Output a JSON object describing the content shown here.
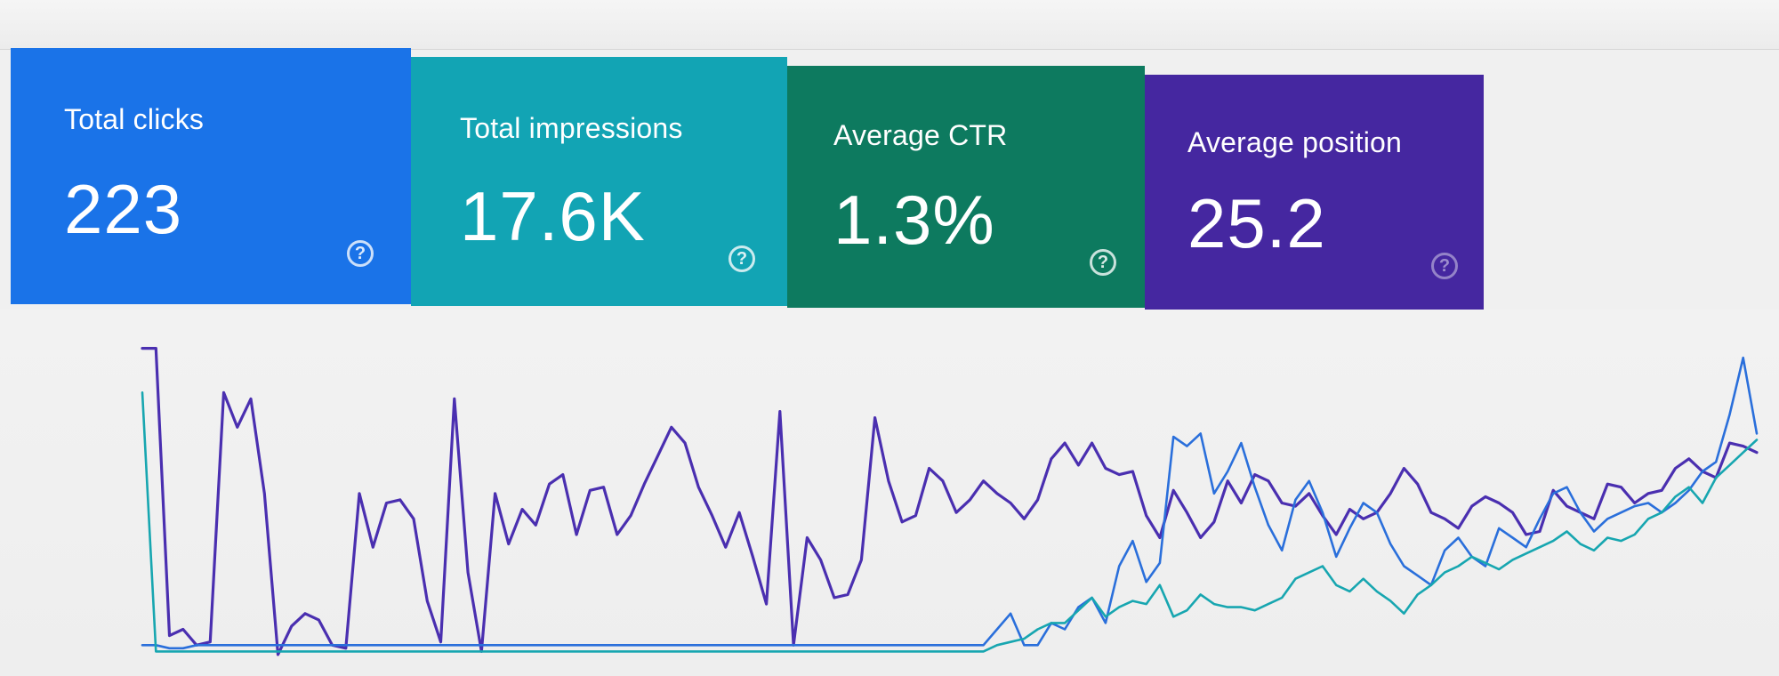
{
  "cards": [
    {
      "label": "Total clicks",
      "value": "223",
      "color": "#1a73e8",
      "icon": "help-icon"
    },
    {
      "label": "Total impressions",
      "value": "17.6K",
      "color": "#12a4b4",
      "icon": "help-icon"
    },
    {
      "label": "Average CTR",
      "value": "1.3%",
      "color": "#0d7a5f",
      "icon": "help-icon"
    },
    {
      "label": "Average position",
      "value": "25.2",
      "color": "#4527a0",
      "icon": "help-icon"
    }
  ],
  "help_glyph": "?",
  "chart_data": {
    "type": "line",
    "grid": false,
    "legend": "none",
    "x": [
      1,
      2,
      3,
      4,
      5,
      6,
      7,
      8,
      9,
      10,
      11,
      12,
      13,
      14,
      15,
      16,
      17,
      18,
      19,
      20,
      21,
      22,
      23,
      24,
      25,
      26,
      27,
      28,
      29,
      30,
      31,
      32,
      33,
      34,
      35,
      36,
      37,
      38,
      39,
      40,
      41,
      42,
      43,
      44,
      45,
      46,
      47,
      48,
      49,
      50,
      51,
      52,
      53,
      54,
      55,
      56,
      57,
      58,
      59,
      60,
      61,
      62,
      63,
      64,
      65,
      66,
      67,
      68,
      69,
      70,
      71,
      72,
      73,
      74,
      75,
      76,
      77,
      78,
      79,
      80,
      81,
      82,
      83,
      84,
      85,
      86,
      87,
      88,
      89,
      90,
      91,
      92,
      93,
      94,
      95,
      96,
      97,
      98,
      99,
      100,
      101,
      102,
      103,
      104,
      105,
      106,
      107,
      108,
      109,
      110,
      111,
      112,
      113,
      114,
      115,
      116,
      117,
      118,
      119,
      120
    ],
    "ylim": [
      0,
      1
    ],
    "series": [
      {
        "color": "#4a2fb0",
        "values": [
          0.99,
          0.99,
          0.08,
          0.1,
          0.05,
          0.06,
          0.85,
          0.74,
          0.83,
          0.53,
          0.02,
          0.11,
          0.15,
          0.13,
          0.05,
          0.04,
          0.53,
          0.36,
          0.5,
          0.51,
          0.45,
          0.19,
          0.06,
          0.83,
          0.28,
          0.03,
          0.53,
          0.37,
          0.48,
          0.43,
          0.56,
          0.59,
          0.4,
          0.54,
          0.55,
          0.4,
          0.46,
          0.56,
          0.65,
          0.74,
          0.69,
          0.55,
          0.46,
          0.36,
          0.47,
          0.33,
          0.18,
          0.79,
          0.05,
          0.39,
          0.32,
          0.2,
          0.21,
          0.32,
          0.77,
          0.57,
          0.44,
          0.46,
          0.61,
          0.57,
          0.47,
          0.51,
          0.57,
          0.53,
          0.5,
          0.45,
          0.51,
          0.64,
          0.69,
          0.62,
          0.69,
          0.61,
          0.59,
          0.6,
          0.46,
          0.39,
          0.54,
          0.47,
          0.39,
          0.44,
          0.57,
          0.5,
          0.59,
          0.57,
          0.5,
          0.49,
          0.53,
          0.46,
          0.4,
          0.48,
          0.45,
          0.47,
          0.53,
          0.61,
          0.56,
          0.47,
          0.45,
          0.42,
          0.49,
          0.52,
          0.5,
          0.47,
          0.4,
          0.41,
          0.54,
          0.49,
          0.47,
          0.45,
          0.56,
          0.55,
          0.5,
          0.53,
          0.54,
          0.61,
          0.64,
          0.6,
          0.58,
          0.69,
          0.68,
          0.66
        ]
      },
      {
        "color": "#2a6fdb",
        "values": [
          0.05,
          0.05,
          0.04,
          0.04,
          0.05,
          0.05,
          0.05,
          0.05,
          0.05,
          0.05,
          0.05,
          0.05,
          0.05,
          0.05,
          0.05,
          0.05,
          0.05,
          0.05,
          0.05,
          0.05,
          0.05,
          0.05,
          0.05,
          0.05,
          0.05,
          0.05,
          0.05,
          0.05,
          0.05,
          0.05,
          0.05,
          0.05,
          0.05,
          0.05,
          0.05,
          0.05,
          0.05,
          0.05,
          0.05,
          0.05,
          0.05,
          0.05,
          0.05,
          0.05,
          0.05,
          0.05,
          0.05,
          0.05,
          0.05,
          0.05,
          0.05,
          0.05,
          0.05,
          0.05,
          0.05,
          0.05,
          0.05,
          0.05,
          0.05,
          0.05,
          0.05,
          0.05,
          0.05,
          0.1,
          0.15,
          0.05,
          0.05,
          0.12,
          0.1,
          0.17,
          0.2,
          0.12,
          0.3,
          0.38,
          0.25,
          0.31,
          0.71,
          0.68,
          0.72,
          0.53,
          0.6,
          0.69,
          0.55,
          0.43,
          0.35,
          0.51,
          0.57,
          0.47,
          0.33,
          0.42,
          0.5,
          0.47,
          0.37,
          0.3,
          0.27,
          0.24,
          0.35,
          0.39,
          0.33,
          0.3,
          0.42,
          0.39,
          0.36,
          0.45,
          0.53,
          0.55,
          0.47,
          0.41,
          0.45,
          0.47,
          0.49,
          0.5,
          0.47,
          0.5,
          0.54,
          0.6,
          0.63,
          0.78,
          0.96,
          0.72
        ]
      },
      {
        "color": "#17a6b0",
        "values": [
          0.85,
          0.03,
          0.03,
          0.03,
          0.03,
          0.03,
          0.03,
          0.03,
          0.03,
          0.03,
          0.03,
          0.03,
          0.03,
          0.03,
          0.03,
          0.03,
          0.03,
          0.03,
          0.03,
          0.03,
          0.03,
          0.03,
          0.03,
          0.03,
          0.03,
          0.03,
          0.03,
          0.03,
          0.03,
          0.03,
          0.03,
          0.03,
          0.03,
          0.03,
          0.03,
          0.03,
          0.03,
          0.03,
          0.03,
          0.03,
          0.03,
          0.03,
          0.03,
          0.03,
          0.03,
          0.03,
          0.03,
          0.03,
          0.03,
          0.03,
          0.03,
          0.03,
          0.03,
          0.03,
          0.03,
          0.03,
          0.03,
          0.03,
          0.03,
          0.03,
          0.03,
          0.03,
          0.03,
          0.05,
          0.06,
          0.07,
          0.1,
          0.12,
          0.12,
          0.16,
          0.2,
          0.14,
          0.17,
          0.19,
          0.18,
          0.24,
          0.14,
          0.16,
          0.21,
          0.18,
          0.17,
          0.17,
          0.16,
          0.18,
          0.2,
          0.26,
          0.28,
          0.3,
          0.24,
          0.22,
          0.26,
          0.22,
          0.19,
          0.15,
          0.21,
          0.24,
          0.28,
          0.3,
          0.33,
          0.31,
          0.29,
          0.32,
          0.34,
          0.36,
          0.38,
          0.41,
          0.37,
          0.35,
          0.39,
          0.38,
          0.4,
          0.45,
          0.47,
          0.52,
          0.55,
          0.5,
          0.58,
          0.62,
          0.66,
          0.7
        ]
      }
    ]
  }
}
